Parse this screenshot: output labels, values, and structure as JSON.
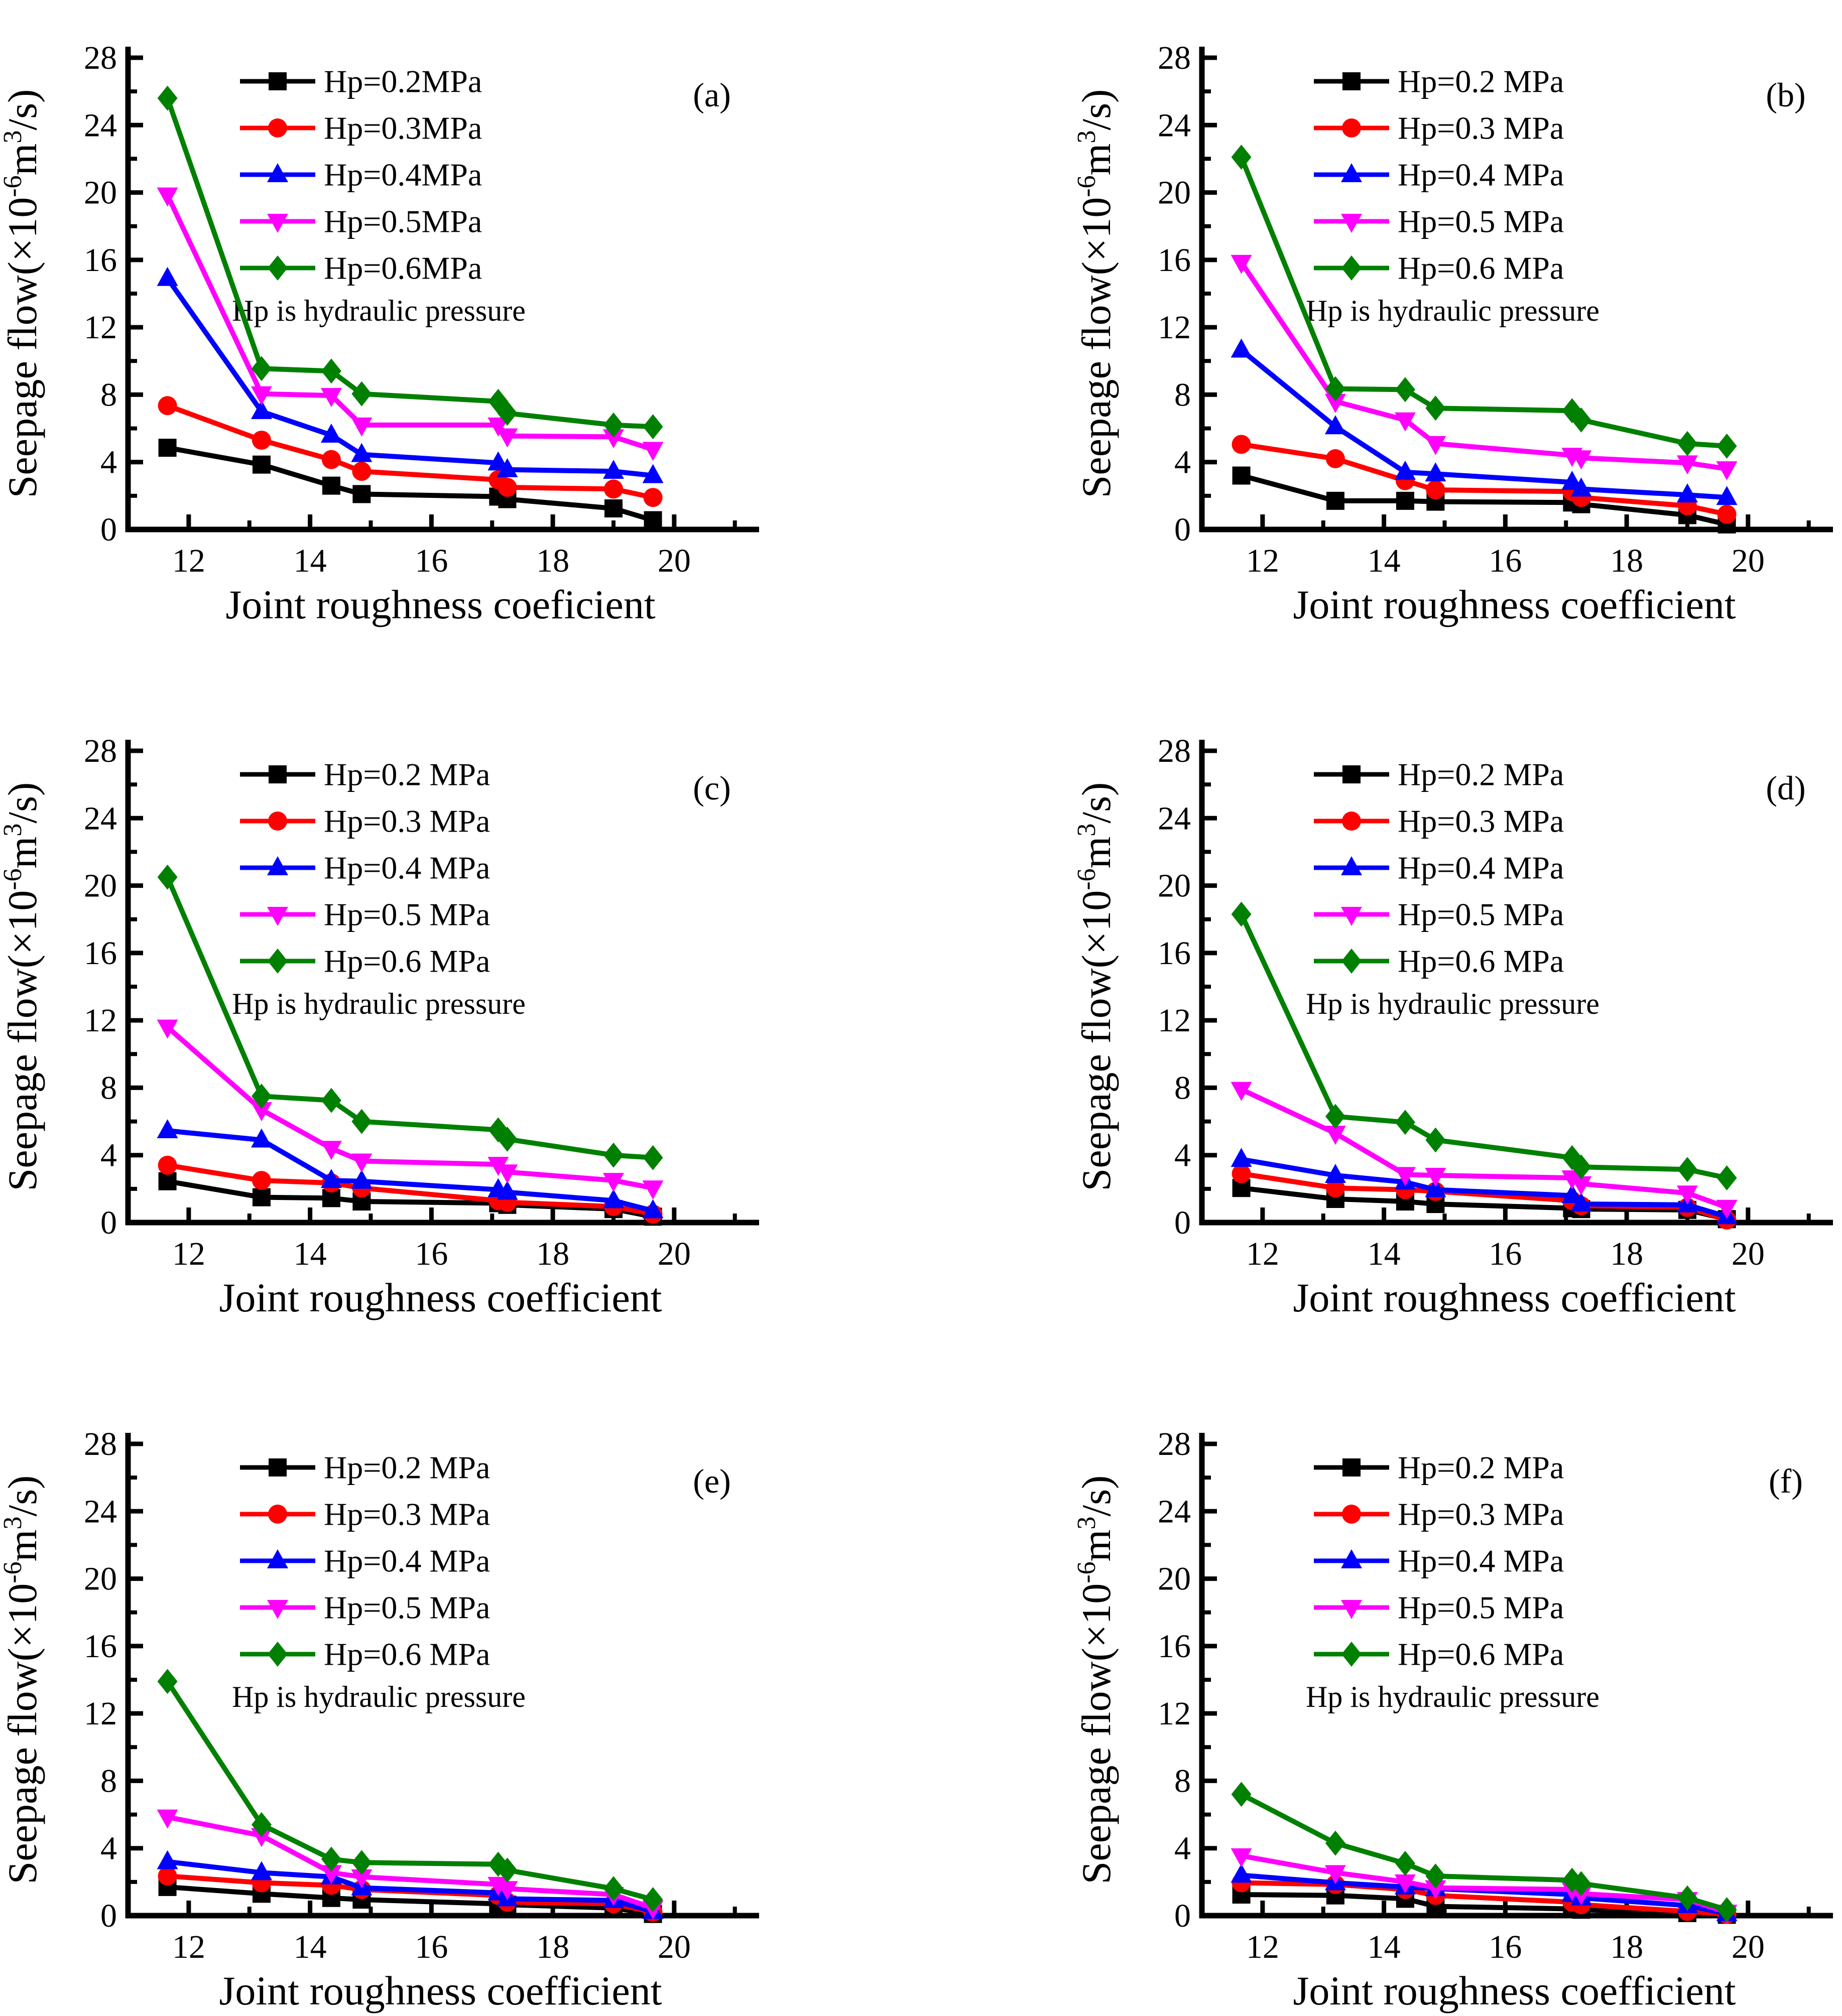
{
  "figure_note": "Hp is hydraulic pressure",
  "style": {
    "background": "#ffffff",
    "axis_color": "#000000",
    "series_colors": {
      "hp02": "#000000",
      "hp03": "#ff0000",
      "hp04": "#0000ff",
      "hp05": "#ff00ff",
      "hp06": "#008000"
    },
    "markers": {
      "hp02": "square",
      "hp03": "circle",
      "hp04": "triangle-up",
      "hp05": "triangle-down",
      "hp06": "diamond"
    }
  },
  "chart_data": [
    {
      "type": "line",
      "panel_label": "(a)",
      "xlabel": "Joint roughness coeficient",
      "ylabel": "Seepage flow(×10⁻⁶m³/s)",
      "ylabel_parts": {
        "pre": "Seepage flow(×10",
        "sup1": "-6",
        "mid": "m",
        "sup2": "3",
        "post": "/s)"
      },
      "note": "Hp is hydraulic pressure",
      "xlim": [
        11,
        21.3
      ],
      "ylim": [
        0,
        28
      ],
      "x_major_ticks": [
        12,
        14,
        16,
        18,
        20
      ],
      "x_minor_ticks": [
        13,
        15,
        17,
        19,
        21
      ],
      "y_major_ticks": [
        0,
        4,
        8,
        12,
        16,
        20,
        24,
        28
      ],
      "y_minor_ticks": [
        2,
        6,
        10,
        14,
        18,
        22,
        26
      ],
      "grid": false,
      "legend_position": "top-left-inside",
      "x": [
        11.65,
        13.2,
        14.35,
        14.85,
        17.1,
        17.25,
        19.0,
        19.65
      ],
      "series": [
        {
          "name": "Hp=0.2MPa",
          "key": "hp02",
          "values": [
            4.85,
            3.85,
            2.6,
            2.1,
            1.95,
            1.8,
            1.25,
            0.55
          ]
        },
        {
          "name": "Hp=0.3MPa",
          "key": "hp03",
          "values": [
            7.35,
            5.3,
            4.15,
            3.45,
            2.95,
            2.5,
            2.4,
            1.9
          ]
        },
        {
          "name": "Hp=0.4MPa",
          "key": "hp04",
          "values": [
            14.9,
            7.0,
            5.6,
            4.45,
            3.95,
            3.55,
            3.45,
            3.2
          ]
        },
        {
          "name": "Hp=0.5MPa",
          "key": "hp05",
          "values": [
            19.85,
            8.05,
            7.95,
            6.2,
            6.2,
            5.55,
            5.5,
            4.75
          ]
        },
        {
          "name": "Hp=0.6MPa",
          "key": "hp06",
          "values": [
            25.6,
            9.55,
            9.4,
            8.05,
            7.6,
            6.9,
            6.2,
            6.1
          ]
        }
      ]
    },
    {
      "type": "line",
      "panel_label": "(b)",
      "xlabel": "Joint roughness coefficient",
      "ylabel": "Seepage flow(×10⁻⁶m³/s)",
      "ylabel_parts": {
        "pre": "Seepage flow(×10",
        "sup1": "-6",
        "mid": "m",
        "sup2": "3",
        "post": "/s)"
      },
      "note": "Hp is hydraulic pressure",
      "xlim": [
        11,
        21.3
      ],
      "ylim": [
        0,
        28
      ],
      "x_major_ticks": [
        12,
        14,
        16,
        18,
        20
      ],
      "x_minor_ticks": [
        13,
        15,
        17,
        19,
        21
      ],
      "y_major_ticks": [
        0,
        4,
        8,
        12,
        16,
        20,
        24,
        28
      ],
      "y_minor_ticks": [
        2,
        6,
        10,
        14,
        18,
        22,
        26
      ],
      "grid": false,
      "legend_position": "top-left-inside",
      "x": [
        11.65,
        13.2,
        14.35,
        14.85,
        17.1,
        17.25,
        19.0,
        19.65
      ],
      "series": [
        {
          "name": "Hp=0.2 MPa",
          "key": "hp02",
          "values": [
            3.2,
            1.7,
            1.7,
            1.65,
            1.6,
            1.5,
            0.85,
            0.3
          ]
        },
        {
          "name": "Hp=0.3 MPa",
          "key": "hp03",
          "values": [
            5.05,
            4.2,
            2.9,
            2.35,
            2.25,
            1.9,
            1.4,
            0.9
          ]
        },
        {
          "name": "Hp=0.4 MPa",
          "key": "hp04",
          "values": [
            10.65,
            6.1,
            3.4,
            3.3,
            2.8,
            2.4,
            2.05,
            1.9
          ]
        },
        {
          "name": "Hp=0.5 MPa",
          "key": "hp05",
          "values": [
            15.85,
            7.6,
            6.5,
            5.1,
            4.4,
            4.25,
            3.95,
            3.6
          ]
        },
        {
          "name": "Hp=0.6 MPa",
          "key": "hp06",
          "values": [
            22.1,
            8.35,
            8.3,
            7.2,
            7.05,
            6.5,
            5.1,
            4.95
          ]
        }
      ]
    },
    {
      "type": "line",
      "panel_label": "(c)",
      "xlabel": "Joint roughness coefficient",
      "ylabel": "Seepage flow(×10⁻⁶m³/s)",
      "ylabel_parts": {
        "pre": "Seepage flow(×10",
        "sup1": "-6",
        "mid": "m",
        "sup2": "3",
        "post": "/s)"
      },
      "note": "Hp is hydraulic pressure",
      "xlim": [
        11,
        21.3
      ],
      "ylim": [
        0,
        28
      ],
      "x_major_ticks": [
        12,
        14,
        16,
        18,
        20
      ],
      "x_minor_ticks": [
        13,
        15,
        17,
        19,
        21
      ],
      "y_major_ticks": [
        0,
        4,
        8,
        12,
        16,
        20,
        24,
        28
      ],
      "y_minor_ticks": [
        2,
        6,
        10,
        14,
        18,
        22,
        26
      ],
      "grid": false,
      "legend_position": "top-left-inside",
      "x": [
        11.65,
        13.2,
        14.35,
        14.85,
        17.1,
        17.25,
        19.0,
        19.65
      ],
      "series": [
        {
          "name": "Hp=0.2 MPa",
          "key": "hp02",
          "values": [
            2.45,
            1.5,
            1.45,
            1.25,
            1.15,
            1.05,
            0.8,
            0.35
          ]
        },
        {
          "name": "Hp=0.3 MPa",
          "key": "hp03",
          "values": [
            3.4,
            2.5,
            2.35,
            2.05,
            1.3,
            1.2,
            0.95,
            0.5
          ]
        },
        {
          "name": "Hp=0.4 MPa",
          "key": "hp04",
          "values": [
            5.45,
            4.9,
            2.5,
            2.45,
            1.95,
            1.8,
            1.3,
            0.7
          ]
        },
        {
          "name": "Hp=0.5 MPa",
          "key": "hp05",
          "values": [
            11.6,
            6.7,
            4.4,
            3.65,
            3.45,
            3.0,
            2.5,
            2.05
          ]
        },
        {
          "name": "Hp=0.6 MPa",
          "key": "hp06",
          "values": [
            20.5,
            7.5,
            7.25,
            6.0,
            5.5,
            4.95,
            4.0,
            3.85
          ]
        }
      ]
    },
    {
      "type": "line",
      "panel_label": "(d)",
      "xlabel": "Joint roughness coefficient",
      "ylabel": "Seepage flow(×10⁻⁶m³/s)",
      "ylabel_parts": {
        "pre": "Seepage flow(×10",
        "sup1": "-6",
        "mid": "m",
        "sup2": "3",
        "post": "/s)"
      },
      "note": "Hp is hydraulic pressure",
      "xlim": [
        11,
        21.3
      ],
      "ylim": [
        0,
        28
      ],
      "x_major_ticks": [
        12,
        14,
        16,
        18,
        20
      ],
      "x_minor_ticks": [
        13,
        15,
        17,
        19,
        21
      ],
      "y_major_ticks": [
        0,
        4,
        8,
        12,
        16,
        20,
        24,
        28
      ],
      "y_minor_ticks": [
        2,
        6,
        10,
        14,
        18,
        22,
        26
      ],
      "grid": false,
      "legend_position": "top-left-inside",
      "x": [
        11.65,
        13.2,
        14.35,
        14.85,
        17.1,
        17.25,
        19.0,
        19.65
      ],
      "series": [
        {
          "name": "Hp=0.2 MPa",
          "key": "hp02",
          "values": [
            2.05,
            1.4,
            1.25,
            1.1,
            0.85,
            0.8,
            0.75,
            0.2
          ]
        },
        {
          "name": "Hp=0.3 MPa",
          "key": "hp03",
          "values": [
            2.9,
            2.05,
            1.95,
            1.85,
            1.3,
            1.0,
            0.9,
            0.15
          ]
        },
        {
          "name": "Hp=0.4 MPa",
          "key": "hp04",
          "values": [
            3.75,
            2.8,
            2.4,
            1.95,
            1.6,
            1.1,
            1.05,
            0.35
          ]
        },
        {
          "name": "Hp=0.5 MPa",
          "key": "hp05",
          "values": [
            7.9,
            5.3,
            2.85,
            2.8,
            2.65,
            2.3,
            1.75,
            0.9
          ]
        },
        {
          "name": "Hp=0.6 MPa",
          "key": "hp06",
          "values": [
            18.3,
            6.3,
            5.95,
            4.9,
            3.85,
            3.3,
            3.15,
            2.65
          ]
        }
      ]
    },
    {
      "type": "line",
      "panel_label": "(e)",
      "xlabel": "Joint roughness coefficient",
      "ylabel": "Seepage flow(×10⁻⁶m³/s)",
      "ylabel_parts": {
        "pre": "Seepage flow(×10",
        "sup1": "-6",
        "mid": "m",
        "sup2": "3",
        "post": "/s)"
      },
      "note": "Hp is hydraulic pressure",
      "xlim": [
        11,
        21.3
      ],
      "ylim": [
        0,
        28
      ],
      "x_major_ticks": [
        12,
        14,
        16,
        18,
        20
      ],
      "x_minor_ticks": [
        13,
        15,
        17,
        19,
        21
      ],
      "y_major_ticks": [
        0,
        4,
        8,
        12,
        16,
        20,
        24,
        28
      ],
      "y_minor_ticks": [
        2,
        6,
        10,
        14,
        18,
        22,
        26
      ],
      "grid": false,
      "legend_position": "top-left-inside",
      "x": [
        11.65,
        13.2,
        14.35,
        14.85,
        17.1,
        17.25,
        19.0,
        19.65
      ],
      "series": [
        {
          "name": "Hp=0.2 MPa",
          "key": "hp02",
          "values": [
            1.7,
            1.3,
            1.05,
            0.95,
            0.7,
            0.65,
            0.45,
            0.1
          ]
        },
        {
          "name": "Hp=0.3 MPa",
          "key": "hp03",
          "values": [
            2.35,
            1.95,
            1.8,
            1.55,
            1.2,
            0.8,
            0.7,
            0.2
          ]
        },
        {
          "name": "Hp=0.4 MPa",
          "key": "hp04",
          "values": [
            3.2,
            2.55,
            2.3,
            1.65,
            1.35,
            1.0,
            0.9,
            0.25
          ]
        },
        {
          "name": "Hp=0.5 MPa",
          "key": "hp05",
          "values": [
            5.85,
            4.75,
            2.55,
            2.3,
            1.85,
            1.6,
            1.25,
            0.45
          ]
        },
        {
          "name": "Hp=0.6 MPa",
          "key": "hp06",
          "values": [
            13.9,
            5.4,
            3.35,
            3.15,
            3.05,
            2.7,
            1.6,
            0.95
          ]
        }
      ]
    },
    {
      "type": "line",
      "panel_label": "(f)",
      "xlabel": "Joint roughness coefficient",
      "ylabel": "Seepage flow(×10⁻⁶m³/s)",
      "ylabel_parts": {
        "pre": "Seepage flow(×10",
        "sup1": "-6",
        "mid": "m",
        "sup2": "3",
        "post": "/s)"
      },
      "note": "Hp is hydraulic pressure",
      "xlim": [
        11,
        21.3
      ],
      "ylim": [
        0,
        28
      ],
      "x_major_ticks": [
        12,
        14,
        16,
        18,
        20
      ],
      "x_minor_ticks": [
        13,
        15,
        17,
        19,
        21
      ],
      "y_major_ticks": [
        0,
        4,
        8,
        12,
        16,
        20,
        24,
        28
      ],
      "y_minor_ticks": [
        2,
        6,
        10,
        14,
        18,
        22,
        26
      ],
      "grid": false,
      "legend_position": "top-left-inside",
      "x": [
        11.65,
        13.2,
        14.35,
        14.85,
        17.1,
        17.25,
        19.0,
        19.65
      ],
      "series": [
        {
          "name": "Hp=0.2 MPa",
          "key": "hp02",
          "values": [
            1.25,
            1.2,
            1.0,
            0.55,
            0.4,
            0.35,
            0.15,
            0.05
          ]
        },
        {
          "name": "Hp=0.3 MPa",
          "key": "hp03",
          "values": [
            1.95,
            1.85,
            1.55,
            1.2,
            0.8,
            0.65,
            0.25,
            0.08
          ]
        },
        {
          "name": "Hp=0.4 MPa",
          "key": "hp04",
          "values": [
            2.4,
            1.95,
            1.7,
            1.6,
            1.25,
            1.05,
            0.6,
            0.12
          ]
        },
        {
          "name": "Hp=0.5 MPa",
          "key": "hp05",
          "values": [
            3.55,
            2.55,
            2.0,
            1.65,
            1.55,
            1.3,
            0.95,
            0.2
          ]
        },
        {
          "name": "Hp=0.6 MPa",
          "key": "hp06",
          "values": [
            7.2,
            4.3,
            3.1,
            2.35,
            2.1,
            1.9,
            1.05,
            0.35
          ]
        }
      ]
    }
  ]
}
